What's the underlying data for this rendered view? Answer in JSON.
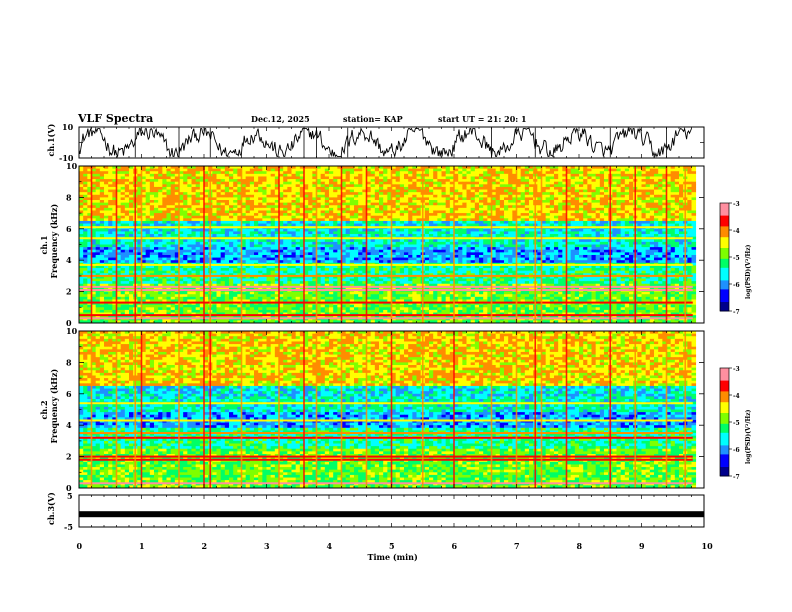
{
  "header": {
    "title": "VLF Spectra",
    "date": "Dec.12, 2025",
    "station": "station= KAP",
    "start_ut": "start UT = 21: 20: 1"
  },
  "colors": {
    "trace": "#000000",
    "colormap": [
      "#00008b",
      "#0000ff",
      "#1e90ff",
      "#00ffff",
      "#00ff66",
      "#7fff00",
      "#ffff00",
      "#ff8c00",
      "#ff0000",
      "#ff8fa0"
    ]
  },
  "chart_data": [
    {
      "type": "line",
      "name": "ch1-waveform",
      "ylabel": "ch.1(V)",
      "ylim": [
        -10,
        10
      ],
      "yticks": [
        "10",
        "-10"
      ],
      "x_range_min": [
        0,
        10
      ],
      "description_note": "noisy waveform oscillating roughly between -8 and 8 V over the record"
    },
    {
      "type": "heatmap",
      "name": "ch1-spectrogram",
      "ylabel": "ch.1 Frequency (kHz)",
      "ylim": [
        0,
        10
      ],
      "yticks": [
        "0",
        "2",
        "4",
        "6",
        "8",
        "10"
      ],
      "xlim": [
        0,
        10
      ],
      "colorbar": {
        "label": "log(PSD)(V²/Hz)",
        "range": [
          -7,
          -3
        ],
        "ticks": [
          "-3",
          "-4",
          "-5",
          "-6",
          "-7"
        ]
      },
      "bands_khz": [
        {
          "f": 0.3,
          "level": -3.3
        },
        {
          "f": 0.5,
          "level": -3.6
        },
        {
          "f": 1.3,
          "level": -3.8
        },
        {
          "f": 2.1,
          "level": -3.3
        },
        {
          "f": 2.3,
          "level": -3.2
        },
        {
          "f": 3.0,
          "level": -4.2
        },
        {
          "f": 3.7,
          "level": -4.4
        },
        {
          "f": 5.4,
          "level": -4.4
        },
        {
          "f": 6.1,
          "level": -4.6
        }
      ],
      "sferic_minutes": [
        0.2,
        0.6,
        0.9,
        1.0,
        1.6,
        2.0,
        2.1,
        2.6,
        3.2,
        3.6,
        3.8,
        4.2,
        4.6,
        5.0,
        5.5,
        6.0,
        6.6,
        7.0,
        7.3,
        7.4,
        7.8,
        8.5,
        8.9,
        9.4,
        9.7
      ]
    },
    {
      "type": "heatmap",
      "name": "ch2-spectrogram",
      "ylabel": "ch.2 Frequency (kHz)",
      "ylim": [
        0,
        10
      ],
      "yticks": [
        "0",
        "2",
        "4",
        "6",
        "8",
        "10"
      ],
      "xlim": [
        0,
        10
      ],
      "colorbar": {
        "label": "log(PSD)(V²/Hz)",
        "range": [
          -7,
          -3
        ],
        "ticks": [
          "-3",
          "-4",
          "-5",
          "-6",
          "-7"
        ]
      },
      "bands_khz": [
        {
          "f": 0.3,
          "level": -3.4
        },
        {
          "f": 1.8,
          "level": -3.7
        },
        {
          "f": 2.0,
          "level": -3.5
        },
        {
          "f": 3.2,
          "level": -3.6
        },
        {
          "f": 3.5,
          "level": -3.9
        },
        {
          "f": 4.3,
          "level": -4.4
        },
        {
          "f": 5.4,
          "level": -4.6
        }
      ],
      "sferic_minutes": [
        0.2,
        0.6,
        0.9,
        1.0,
        1.6,
        2.0,
        2.1,
        2.6,
        3.2,
        3.6,
        3.8,
        4.2,
        4.6,
        5.0,
        5.5,
        6.0,
        6.6,
        7.0,
        7.3,
        7.4,
        7.8,
        8.5,
        8.9,
        9.4,
        9.7
      ]
    },
    {
      "type": "line",
      "name": "ch3-trace",
      "ylabel": "ch.3(V)",
      "ylim": [
        -5,
        5
      ],
      "yticks": [
        "5",
        "-5"
      ],
      "level_volts": -1.0,
      "xlabel": "Time (min)",
      "xticks": [
        "0",
        "1",
        "2",
        "3",
        "4",
        "5",
        "6",
        "7",
        "8",
        "9",
        "10"
      ],
      "xlim": [
        0,
        10
      ]
    }
  ]
}
